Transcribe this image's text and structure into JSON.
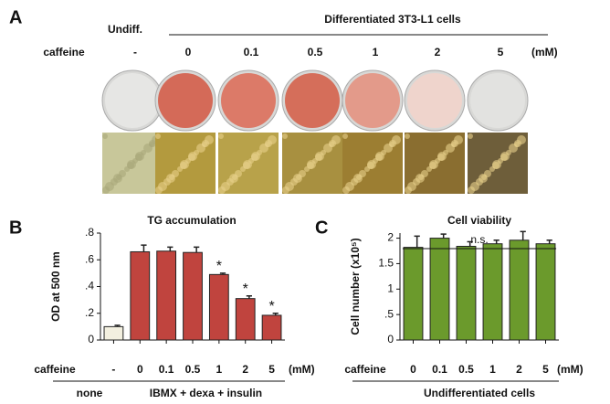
{
  "panel_a": {
    "panel": "A",
    "first_label": "Undiff.",
    "group_label": "Differentiated 3T3-L1 cells",
    "row_label": "caffeine",
    "doses": [
      "-",
      "0",
      "0.1",
      "0.5",
      "1",
      "2",
      "5"
    ],
    "unit": "(mM)",
    "dish_colors": [
      "#e6e6e4",
      "#d46a58",
      "#dc7a68",
      "#d56e5a",
      "#e39a8a",
      "#efd4cc",
      "#e2e2e0"
    ],
    "cell_colors": [
      "#c8c79a",
      "#b39a3e",
      "#b8a24a",
      "#a89040",
      "#9c7e32",
      "#8a6e30",
      "#6e5e3a"
    ]
  },
  "chart_data": [
    {
      "type": "bar",
      "panel": "B",
      "title": "TG accumulation",
      "y_label": "OD at 500 nm",
      "x_row_label": "caffeine",
      "unit": "(mM)",
      "categories": [
        "-",
        "0",
        "0.1",
        "0.5",
        "1",
        "2",
        "5"
      ],
      "values": [
        0.1,
        0.66,
        0.665,
        0.655,
        0.49,
        0.31,
        0.185
      ],
      "errors": [
        0.01,
        0.05,
        0.03,
        0.04,
        0.01,
        0.02,
        0.015
      ],
      "colors": [
        "#f3f0e0",
        "#c0443e",
        "#c0443e",
        "#c0443e",
        "#c0443e",
        "#c0443e",
        "#c0443e"
      ],
      "annotations": [
        null,
        null,
        null,
        null,
        "*",
        "*",
        "*"
      ],
      "groups": [
        {
          "label": "none",
          "span": [
            0,
            0
          ]
        },
        {
          "label": "IBMX + dexa + insulin",
          "span": [
            1,
            6
          ]
        }
      ],
      "ylim": [
        0,
        0.8
      ],
      "yticks": [
        0,
        {
          "value": 0.2,
          "label": ".2"
        },
        {
          "value": 0.4,
          "label": ".4"
        },
        {
          "value": 0.6,
          "label": ".6"
        },
        {
          "value": 0.8,
          "label": ".8"
        }
      ]
    },
    {
      "type": "bar",
      "panel": "C",
      "title": "Cell viability",
      "y_label": "Cell number (x10⁵)",
      "x_row_label": "caffeine",
      "unit": "(mM)",
      "categories": [
        "0",
        "0.1",
        "0.5",
        "1",
        "2",
        "5"
      ],
      "values": [
        1.82,
        2.0,
        1.84,
        1.89,
        1.96,
        1.89
      ],
      "errors": [
        0.22,
        0.08,
        0.09,
        0.07,
        0.17,
        0.07
      ],
      "colors": [
        "#6b9a2c",
        "#6b9a2c",
        "#6b9a2c",
        "#6b9a2c",
        "#6b9a2c",
        "#6b9a2c"
      ],
      "bracket": "n.s.",
      "groups": [
        {
          "label": "Undifferentiated cells",
          "span": [
            0,
            5
          ]
        }
      ],
      "ylim": [
        0,
        2.1
      ],
      "yticks": [
        0,
        {
          "value": 0.5,
          "label": ".5"
        },
        1,
        {
          "value": 1.5,
          "label": "1.5"
        },
        2
      ]
    }
  ]
}
